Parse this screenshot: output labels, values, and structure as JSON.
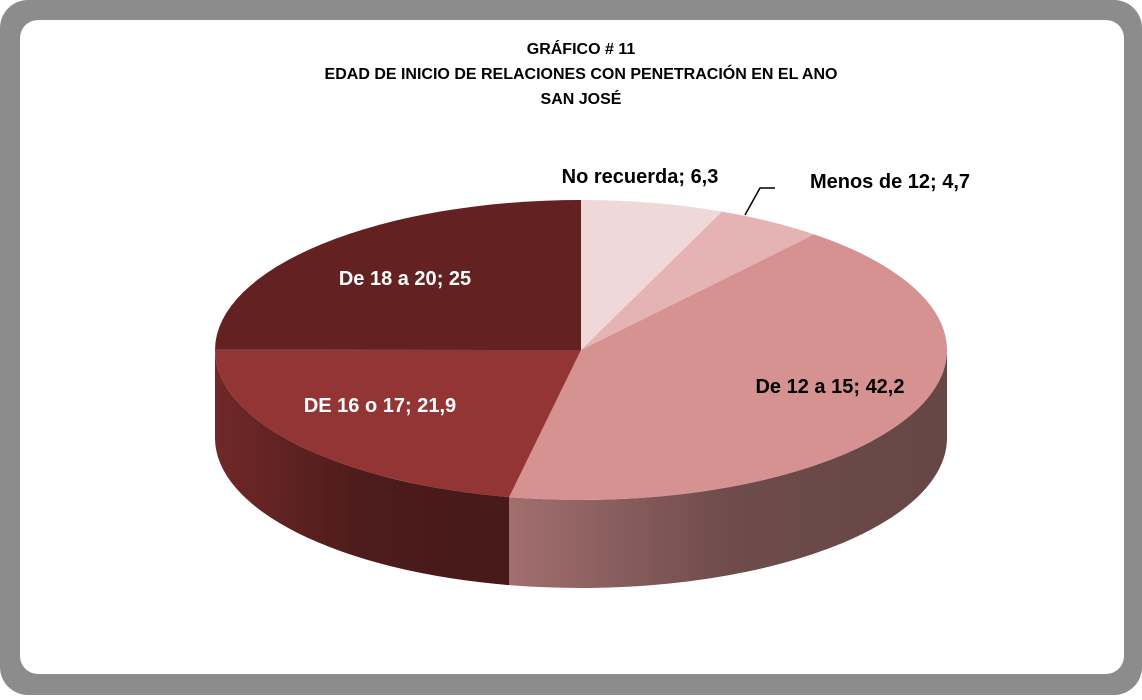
{
  "chart_data": {
    "type": "pie3d",
    "title": [
      "GRÁFICO # 11",
      "EDAD DE INICIO DE RELACIONES CON PENETRACIÓN EN EL ANO",
      "SAN JOSÉ"
    ],
    "categories": [
      "No recuerda",
      "Menos de 12",
      "De 12 a 15",
      "DE 16 o 17",
      "De 18 a 20"
    ],
    "values": [
      6.3,
      4.7,
      42.2,
      21.9,
      25
    ],
    "value_labels": [
      "6,3",
      "4,7",
      "42,2",
      "21,9",
      "25"
    ],
    "label_separator": "; ",
    "colors": [
      "#f0d8d8",
      "#e5b3b3",
      "#d69191",
      "#943535",
      "#642121"
    ]
  }
}
